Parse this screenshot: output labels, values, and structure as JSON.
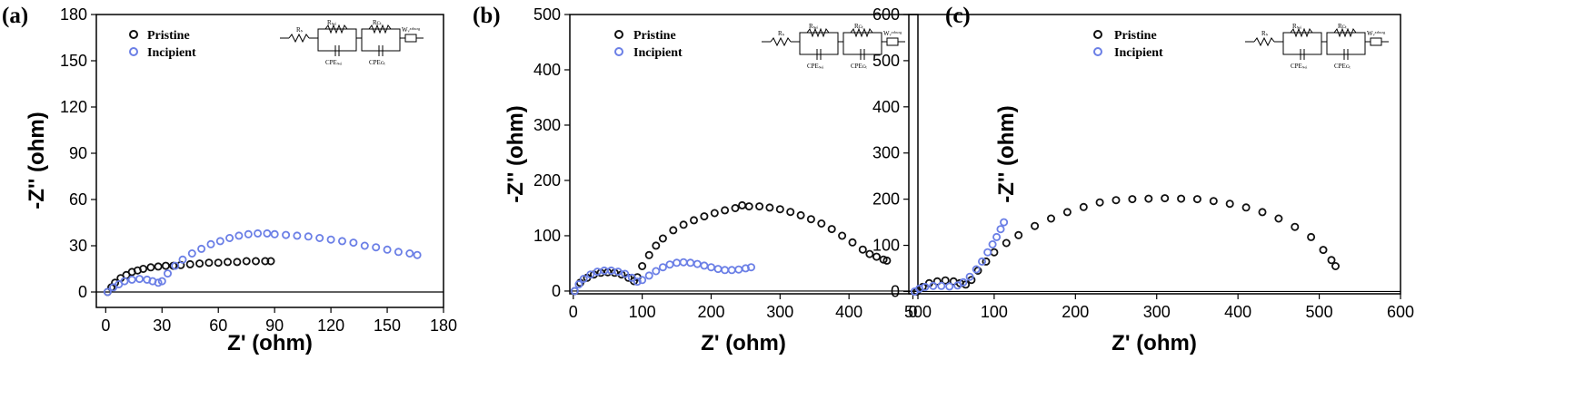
{
  "colors": {
    "pristine": "#111111",
    "incipient": "#6b7fe6",
    "axis": "#000000"
  },
  "chart_data": [
    {
      "type": "scatter",
      "panel_label": "(a)",
      "xlabel": "Z' (ohm)",
      "ylabel": "-Z'' (ohm)",
      "xlim": [
        -5,
        180
      ],
      "ylim": [
        -10,
        180
      ],
      "xticks": [
        0,
        30,
        60,
        90,
        120,
        150,
        180
      ],
      "yticks": [
        0,
        30,
        60,
        90,
        120,
        150,
        180
      ],
      "legend": [
        "Pristine",
        "Incipient"
      ],
      "circuit_labels": [
        "Rₛ",
        "Rₛₑᵢ",
        "Rᴄₜ",
        "Wᵥᵃʳᵇᵘʳᵍ",
        "CPEₛₑᵢ",
        "CPEᴄₜ"
      ],
      "series": [
        {
          "name": "Pristine",
          "points": [
            [
              1,
              0
            ],
            [
              3,
              3
            ],
            [
              5,
              6
            ],
            [
              8,
              9
            ],
            [
              11,
              11
            ],
            [
              14,
              13
            ],
            [
              17,
              14
            ],
            [
              20,
              15
            ],
            [
              24,
              16
            ],
            [
              28,
              16.5
            ],
            [
              32,
              17
            ],
            [
              36,
              17
            ],
            [
              40,
              17.5
            ],
            [
              45,
              18
            ],
            [
              50,
              18.5
            ],
            [
              55,
              19
            ],
            [
              60,
              19
            ],
            [
              65,
              19.5
            ],
            [
              70,
              19.5
            ],
            [
              75,
              20
            ],
            [
              80,
              20
            ],
            [
              85,
              20
            ],
            [
              88,
              20
            ]
          ]
        },
        {
          "name": "Incipient",
          "points": [
            [
              1,
              0
            ],
            [
              4,
              3
            ],
            [
              7,
              5
            ],
            [
              10,
              7
            ],
            [
              14,
              8
            ],
            [
              18,
              8.5
            ],
            [
              22,
              8
            ],
            [
              25,
              7
            ],
            [
              28,
              6
            ],
            [
              30,
              7
            ],
            [
              33,
              12
            ],
            [
              37,
              17
            ],
            [
              41,
              21
            ],
            [
              46,
              25
            ],
            [
              51,
              28
            ],
            [
              56,
              31
            ],
            [
              61,
              33
            ],
            [
              66,
              35
            ],
            [
              71,
              36.5
            ],
            [
              76,
              37.5
            ],
            [
              81,
              38
            ],
            [
              86,
              38
            ],
            [
              90,
              37.5
            ],
            [
              96,
              37
            ],
            [
              102,
              36.5
            ],
            [
              108,
              36
            ],
            [
              114,
              35
            ],
            [
              120,
              34
            ],
            [
              126,
              33
            ],
            [
              132,
              32
            ],
            [
              138,
              30
            ],
            [
              144,
              29
            ],
            [
              150,
              27.5
            ],
            [
              156,
              26
            ],
            [
              162,
              25
            ],
            [
              166,
              24
            ]
          ]
        }
      ]
    },
    {
      "type": "scatter",
      "panel_label": "(b)",
      "xlabel": "Z' (ohm)",
      "ylabel": "-Z'' (ohm)",
      "xlim": [
        -5,
        500
      ],
      "ylim": [
        -5,
        500
      ],
      "xticks": [
        0,
        100,
        200,
        300,
        400,
        500
      ],
      "yticks": [
        0,
        100,
        200,
        300,
        400,
        500
      ],
      "legend": [
        "Pristine",
        "Incipient"
      ],
      "circuit_labels": [
        "Rₛ",
        "Rₛₑᵢ",
        "Rᴄₜ",
        "Wᵥᵃʳᵇᵘʳᵍ",
        "CPEₛₑᵢ",
        "CPEᴄₜ"
      ],
      "series": [
        {
          "name": "Pristine",
          "points": [
            [
              2,
              0
            ],
            [
              10,
              15
            ],
            [
              20,
              24
            ],
            [
              30,
              30
            ],
            [
              40,
              33
            ],
            [
              50,
              34
            ],
            [
              60,
              33
            ],
            [
              70,
              30
            ],
            [
              80,
              24
            ],
            [
              88,
              18
            ],
            [
              93,
              25
            ],
            [
              100,
              45
            ],
            [
              110,
              65
            ],
            [
              120,
              82
            ],
            [
              130,
              95
            ],
            [
              145,
              110
            ],
            [
              160,
              120
            ],
            [
              175,
              128
            ],
            [
              190,
              135
            ],
            [
              205,
              141
            ],
            [
              220,
              146
            ],
            [
              235,
              150
            ],
            [
              245,
              155
            ],
            [
              255,
              153
            ],
            [
              270,
              153
            ],
            [
              285,
              151
            ],
            [
              300,
              148
            ],
            [
              315,
              143
            ],
            [
              330,
              137
            ],
            [
              345,
              130
            ],
            [
              360,
              122
            ],
            [
              375,
              112
            ],
            [
              390,
              100
            ],
            [
              405,
              88
            ],
            [
              420,
              75
            ],
            [
              430,
              67
            ],
            [
              440,
              62
            ],
            [
              450,
              57
            ],
            [
              455,
              55
            ]
          ]
        },
        {
          "name": "Incipient",
          "points": [
            [
              2,
              0
            ],
            [
              8,
              12
            ],
            [
              15,
              22
            ],
            [
              25,
              30
            ],
            [
              35,
              35
            ],
            [
              45,
              37
            ],
            [
              55,
              37
            ],
            [
              65,
              35
            ],
            [
              75,
              31
            ],
            [
              85,
              24
            ],
            [
              93,
              17
            ],
            [
              100,
              20
            ],
            [
              110,
              28
            ],
            [
              120,
              36
            ],
            [
              130,
              43
            ],
            [
              140,
              48
            ],
            [
              150,
              51
            ],
            [
              160,
              52
            ],
            [
              170,
              51
            ],
            [
              180,
              49
            ],
            [
              190,
              46
            ],
            [
              200,
              43
            ],
            [
              210,
              40
            ],
            [
              220,
              38
            ],
            [
              230,
              38
            ],
            [
              240,
              39
            ],
            [
              250,
              41
            ],
            [
              258,
              43
            ]
          ]
        }
      ]
    },
    {
      "type": "scatter",
      "panel_label": "(c)",
      "xlabel": "Z' (ohm)",
      "ylabel": "-Z'' (ohm)",
      "xlim": [
        -5,
        600
      ],
      "ylim": [
        -5,
        600
      ],
      "xticks": [
        0,
        100,
        200,
        300,
        400,
        500,
        600
      ],
      "yticks": [
        0,
        100,
        200,
        300,
        400,
        500,
        600
      ],
      "legend": [
        "Pristine",
        "Incipient"
      ],
      "circuit_labels": [
        "Rₛ",
        "Rₛₑᵢ",
        "Rᴄₜ",
        "Wᵥᵃʳᵇᵘʳᵍ",
        "CPEₛₑᵢ",
        "CPEᴄₜ"
      ],
      "series": [
        {
          "name": "Pristine",
          "points": [
            [
              5,
              0
            ],
            [
              12,
              10
            ],
            [
              20,
              18
            ],
            [
              30,
              22
            ],
            [
              40,
              24
            ],
            [
              50,
              22
            ],
            [
              58,
              18
            ],
            [
              65,
              15
            ],
            [
              72,
              25
            ],
            [
              80,
              45
            ],
            [
              90,
              65
            ],
            [
              100,
              85
            ],
            [
              115,
              105
            ],
            [
              130,
              122
            ],
            [
              150,
              142
            ],
            [
              170,
              158
            ],
            [
              190,
              172
            ],
            [
              210,
              183
            ],
            [
              230,
              193
            ],
            [
              250,
              198
            ],
            [
              270,
              200
            ],
            [
              290,
              201
            ],
            [
              310,
              202
            ],
            [
              330,
              201
            ],
            [
              350,
              200
            ],
            [
              370,
              196
            ],
            [
              390,
              190
            ],
            [
              410,
              182
            ],
            [
              430,
              172
            ],
            [
              450,
              158
            ],
            [
              470,
              140
            ],
            [
              490,
              118
            ],
            [
              505,
              90
            ],
            [
              515,
              68
            ],
            [
              520,
              55
            ]
          ]
        },
        {
          "name": "Incipient",
          "points": [
            [
              2,
              0
            ],
            [
              8,
              6
            ],
            [
              15,
              10
            ],
            [
              25,
              12
            ],
            [
              35,
              12
            ],
            [
              45,
              11
            ],
            [
              55,
              13
            ],
            [
              62,
              20
            ],
            [
              70,
              32
            ],
            [
              78,
              48
            ],
            [
              85,
              65
            ],
            [
              92,
              85
            ],
            [
              98,
              102
            ],
            [
              103,
              118
            ],
            [
              108,
              135
            ],
            [
              112,
              150
            ]
          ]
        }
      ]
    }
  ]
}
